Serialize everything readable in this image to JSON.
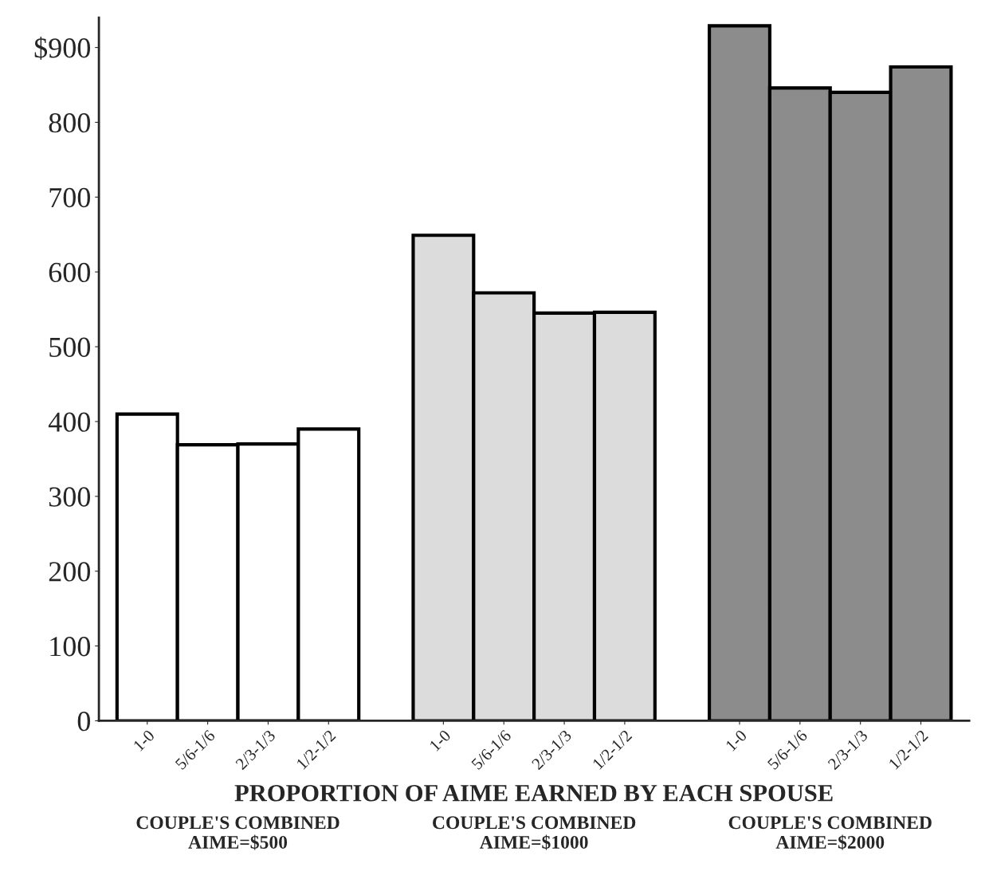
{
  "chart_data": {
    "type": "bar",
    "xlabel": "PROPORTION OF AIME EARNED BY EACH SPOUSE",
    "categories": [
      "1-0",
      "5/6-1/6",
      "2/3-1/3",
      "1/2-1/2",
      "1-0",
      "5/6-1/6",
      "2/3-1/3",
      "1/2-1/2",
      "1-0",
      "5/6-1/6",
      "2/3-1/3",
      "1/2-1/2"
    ],
    "series": [
      {
        "color": "#ffffff",
        "values": [
          410,
          369,
          370,
          390,
          null,
          null,
          null,
          null,
          null,
          null,
          null,
          null
        ]
      },
      {
        "color": "#dcdcdc",
        "values": [
          null,
          null,
          null,
          null,
          649,
          572,
          545,
          546,
          null,
          null,
          null,
          null
        ]
      },
      {
        "color": "#8c8c8c",
        "values": [
          null,
          null,
          null,
          null,
          null,
          null,
          null,
          null,
          929,
          846,
          840,
          874
        ]
      }
    ],
    "ylim": [
      0,
      940
    ],
    "yticks": [
      0,
      100,
      200,
      300,
      400,
      500,
      600,
      700,
      800,
      {
        "value": 900,
        "label": "$900"
      }
    ],
    "annotations": [
      "COUPLE'S COMBINED\nAIME=$500",
      "COUPLE'S COMBINED\nAIME=$1000",
      "COUPLE'S COMBINED\nAIME=$2000"
    ],
    "grid": false,
    "legend": false
  }
}
